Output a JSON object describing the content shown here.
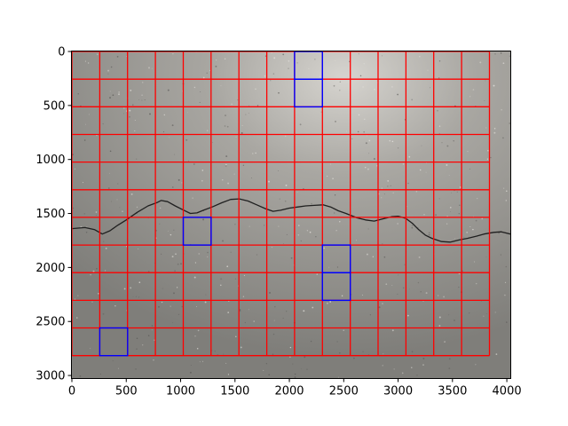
{
  "chart_data": {
    "type": "heatmap",
    "title": "",
    "xlabel": "",
    "ylabel": "",
    "xlim": [
      0,
      4032
    ],
    "ylim": [
      3024,
      0
    ],
    "x_ticks": [
      0,
      500,
      1000,
      1500,
      2000,
      2500,
      3000,
      3500,
      4000
    ],
    "y_ticks": [
      0,
      500,
      1000,
      1500,
      2000,
      2500,
      3000
    ],
    "grid": {
      "cell_size": 256,
      "x_extent": [
        0,
        3840
      ],
      "y_extent": [
        0,
        2816
      ],
      "line_color": "#ff0000"
    },
    "highlighted_cells": [
      {
        "x": 2048,
        "y": 0,
        "w": 256,
        "h": 256
      },
      {
        "x": 2048,
        "y": 256,
        "w": 256,
        "h": 256
      },
      {
        "x": 1024,
        "y": 1536,
        "w": 256,
        "h": 256
      },
      {
        "x": 2304,
        "y": 1792,
        "w": 256,
        "h": 256
      },
      {
        "x": 2304,
        "y": 2048,
        "w": 256,
        "h": 256
      },
      {
        "x": 256,
        "y": 2560,
        "w": 256,
        "h": 256
      }
    ],
    "highlight_color": "#0000ff",
    "crack_path": [
      [
        0,
        1640
      ],
      [
        120,
        1630
      ],
      [
        210,
        1650
      ],
      [
        280,
        1690
      ],
      [
        350,
        1660
      ],
      [
        420,
        1610
      ],
      [
        500,
        1560
      ],
      [
        600,
        1490
      ],
      [
        700,
        1430
      ],
      [
        780,
        1400
      ],
      [
        820,
        1380
      ],
      [
        880,
        1390
      ],
      [
        950,
        1430
      ],
      [
        1030,
        1470
      ],
      [
        1090,
        1500
      ],
      [
        1150,
        1495
      ],
      [
        1210,
        1470
      ],
      [
        1290,
        1440
      ],
      [
        1380,
        1400
      ],
      [
        1460,
        1370
      ],
      [
        1540,
        1365
      ],
      [
        1620,
        1385
      ],
      [
        1700,
        1420
      ],
      [
        1780,
        1455
      ],
      [
        1850,
        1480
      ],
      [
        1920,
        1470
      ],
      [
        2000,
        1450
      ],
      [
        2080,
        1440
      ],
      [
        2150,
        1430
      ],
      [
        2230,
        1425
      ],
      [
        2310,
        1420
      ],
      [
        2380,
        1440
      ],
      [
        2450,
        1475
      ],
      [
        2520,
        1500
      ],
      [
        2620,
        1540
      ],
      [
        2700,
        1560
      ],
      [
        2780,
        1570
      ],
      [
        2860,
        1550
      ],
      [
        2940,
        1530
      ],
      [
        3000,
        1525
      ],
      [
        3070,
        1545
      ],
      [
        3130,
        1590
      ],
      [
        3190,
        1650
      ],
      [
        3250,
        1700
      ],
      [
        3310,
        1730
      ],
      [
        3400,
        1760
      ],
      [
        3480,
        1765
      ],
      [
        3560,
        1745
      ],
      [
        3640,
        1730
      ],
      [
        3720,
        1710
      ],
      [
        3790,
        1690
      ],
      [
        3880,
        1675
      ],
      [
        3950,
        1670
      ],
      [
        4032,
        1690
      ]
    ],
    "colors": {
      "asphalt": "#8f8e8a",
      "crack": "#1f1f1f"
    }
  }
}
